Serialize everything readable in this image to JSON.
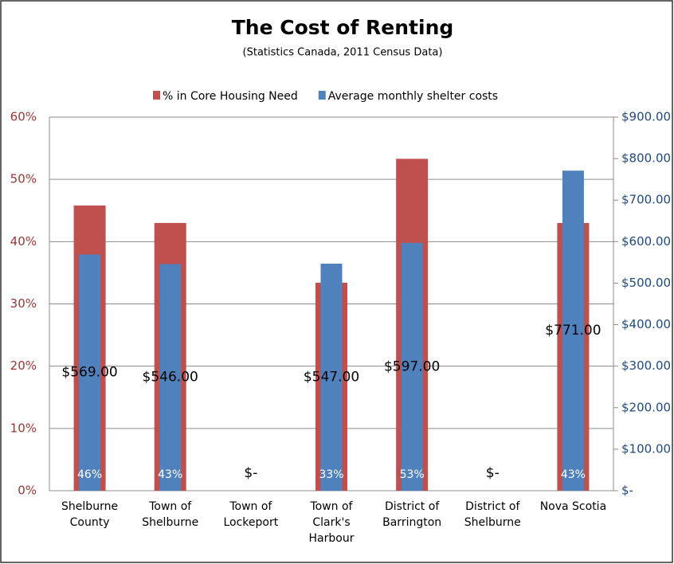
{
  "chart_data": {
    "type": "bar",
    "title": "The Cost of Renting",
    "subtitle": "(Statistics Canada, 2011 Census Data)",
    "categories": [
      "Shelburne County",
      "Town of Shelburne",
      "Town of Lockeport",
      "Town of Clark's Harbour",
      "District of Barrington",
      "District of Shelburne",
      "Nova Scotia"
    ],
    "series": [
      {
        "name": "% in Core Housing Need",
        "color": "#c0504d",
        "values": [
          45.8,
          43,
          null,
          33.4,
          53.3,
          null,
          43
        ],
        "value_labels": [
          "46%",
          "43%",
          null,
          "33%",
          "53%",
          null,
          "43%"
        ]
      },
      {
        "name": "Average monthly shelter costs",
        "color": "#4f81bd",
        "axis": "y2",
        "values": [
          569,
          546,
          0,
          547,
          597,
          0,
          771
        ],
        "value_labels": [
          "$569.00",
          "$546.00",
          "$-",
          "$547.00",
          "$597.00",
          "$-",
          "$771.00"
        ]
      }
    ],
    "ylim": [
      0,
      60
    ],
    "yticks": [
      {
        "value": 0,
        "label": "0%"
      },
      {
        "value": 10,
        "label": "10%"
      },
      {
        "value": 20,
        "label": "20%"
      },
      {
        "value": 30,
        "label": "30%"
      },
      {
        "value": 40,
        "label": "40%"
      },
      {
        "value": 50,
        "label": "50%"
      },
      {
        "value": 60,
        "label": "60%"
      }
    ],
    "y2lim": [
      0,
      900
    ],
    "y2ticks": [
      {
        "value": 0,
        "label": "$-"
      },
      {
        "value": 100,
        "label": "$100.00"
      },
      {
        "value": 200,
        "label": "$200.00"
      },
      {
        "value": 300,
        "label": "$300.00"
      },
      {
        "value": 400,
        "label": "$400.00"
      },
      {
        "value": 500,
        "label": "$500.00"
      },
      {
        "value": 600,
        "label": "$600.00"
      },
      {
        "value": 700,
        "label": "$700.00"
      },
      {
        "value": 800,
        "label": "$800.00"
      },
      {
        "value": 900,
        "label": "$900.00"
      }
    ],
    "grid": true,
    "legend": "top"
  }
}
